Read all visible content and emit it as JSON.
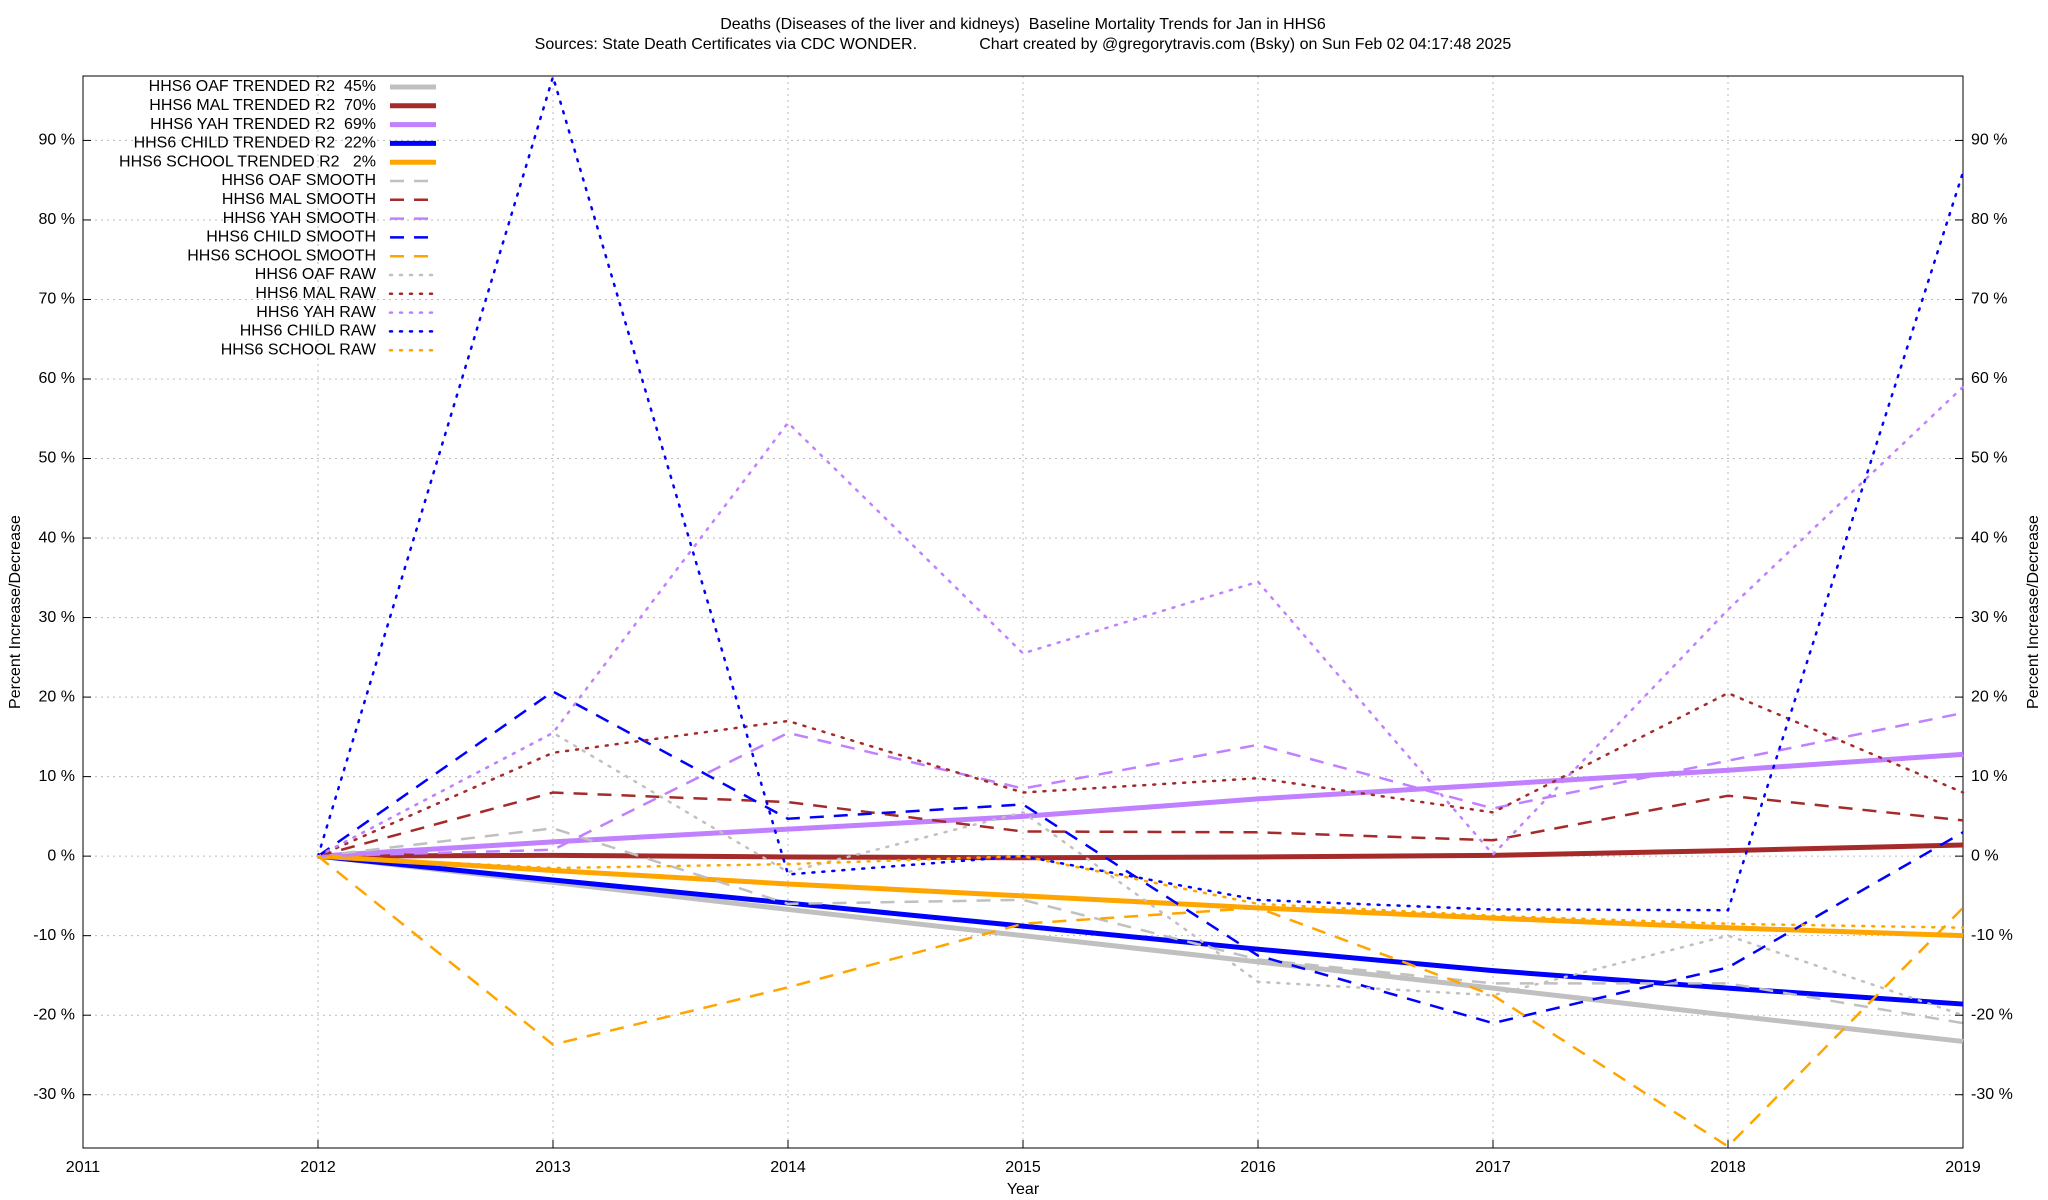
{
  "chart_data": {
    "type": "line",
    "title": "Deaths (Diseases of the liver and kidneys)  Baseline Mortality Trends for Jan in HHS6",
    "subtitle": "Sources: State Death Certificates via CDC WONDER.              Chart created by @gregorytravis.com (Bsky) on Sun Feb 02 04:17:48 2025",
    "x_label": "Year",
    "y_label": "Percent Increase/Decrease",
    "y2_label": "Percent Increase/Decrease",
    "x": [
      2012,
      2013,
      2014,
      2015,
      2016,
      2017,
      2018,
      2019
    ],
    "xlim": [
      2011,
      2019
    ],
    "xticks": [
      2011,
      2012,
      2013,
      2014,
      2015,
      2016,
      2017,
      2018,
      2019
    ],
    "ylim": [
      -36.7,
      98.1
    ],
    "yticks": [
      {
        "value": -30,
        "label": "-30 %"
      },
      {
        "value": -20,
        "label": "-20 %"
      },
      {
        "value": -10,
        "label": "-10 %"
      },
      {
        "value": 0,
        "label": "0 %"
      },
      {
        "value": 10,
        "label": "10 %"
      },
      {
        "value": 20,
        "label": "20 %"
      },
      {
        "value": 30,
        "label": "30 %"
      },
      {
        "value": 40,
        "label": "40 %"
      },
      {
        "value": 50,
        "label": "50 %"
      },
      {
        "value": 60,
        "label": "60 %"
      },
      {
        "value": 70,
        "label": "70 %"
      },
      {
        "value": 80,
        "label": "80 %"
      },
      {
        "value": 90,
        "label": "90 %"
      }
    ],
    "grid": true,
    "legend": "top-left",
    "series": [
      {
        "name": "HHS6 OAF TRENDED R2  45%",
        "color": "#c0c0c0",
        "style": "solid",
        "values": [
          0,
          -3.3,
          -6.7,
          -10,
          -13.3,
          -16.6,
          -20,
          -23.3
        ]
      },
      {
        "name": "HHS6 MAL TRENDED R2  70%",
        "color": "#a52a2a",
        "style": "solid",
        "values": [
          0,
          0.1,
          -0.1,
          -0.2,
          -0.1,
          0.1,
          0.7,
          1.4
        ]
      },
      {
        "name": "HHS6 YAH TRENDED R2  69%",
        "color": "#c080ff",
        "style": "solid",
        "values": [
          0,
          1.8,
          3.4,
          5.0,
          7.2,
          9.0,
          10.8,
          12.8
        ]
      },
      {
        "name": "HHS6 CHILD TRENDED R2  22%",
        "color": "#0000ff",
        "style": "solid",
        "values": [
          0,
          -3,
          -5.9,
          -8.8,
          -11.7,
          -14.4,
          -16.6,
          -18.6
        ]
      },
      {
        "name": "HHS6 SCHOOL TRENDED R2   2%",
        "color": "#ffa500",
        "style": "solid",
        "values": [
          0,
          -1.8,
          -3.5,
          -5,
          -6.5,
          -7.8,
          -9,
          -10
        ]
      },
      {
        "name": "HHS6 OAF SMOOTH",
        "color": "#c0c0c0",
        "style": "dashed",
        "values": [
          0,
          3.5,
          -6,
          -5.5,
          -13,
          -16,
          -16,
          -21
        ]
      },
      {
        "name": "HHS6 MAL SMOOTH",
        "color": "#a52a2a",
        "style": "dashed",
        "values": [
          0,
          8,
          6.8,
          3.1,
          3,
          2,
          7.6,
          4.5
        ]
      },
      {
        "name": "HHS6 YAH SMOOTH",
        "color": "#c080ff",
        "style": "dashed",
        "values": [
          0,
          0.8,
          15.5,
          8.5,
          14,
          6,
          12,
          18
        ]
      },
      {
        "name": "HHS6 CHILD SMOOTH",
        "color": "#0000ff",
        "style": "dashed",
        "values": [
          0,
          20.7,
          4.7,
          6.5,
          -12.5,
          -21,
          -14,
          3
        ]
      },
      {
        "name": "HHS6 SCHOOL SMOOTH",
        "color": "#ffa500",
        "style": "dashed",
        "values": [
          0,
          -23.7,
          -16.5,
          -8.5,
          -6.5,
          -17.5,
          -36.5,
          -6.5
        ]
      },
      {
        "name": "HHS6 OAF RAW",
        "color": "#c0c0c0",
        "style": "dotted",
        "values": [
          0,
          15.5,
          -2,
          5.5,
          -15.8,
          -17.5,
          -10,
          -20
        ]
      },
      {
        "name": "HHS6 MAL RAW",
        "color": "#a52a2a",
        "style": "dotted",
        "values": [
          0,
          13,
          17,
          8,
          9.8,
          5.5,
          20.5,
          8
        ]
      },
      {
        "name": "HHS6 YAH RAW",
        "color": "#c080ff",
        "style": "dotted",
        "values": [
          0,
          15.5,
          54.5,
          25.5,
          34.5,
          0.2,
          31,
          59
        ]
      },
      {
        "name": "HHS6 CHILD RAW",
        "color": "#0000ff",
        "style": "dotted",
        "values": [
          0,
          98,
          -2.3,
          0,
          -5.5,
          -6.7,
          -6.8,
          86
        ]
      },
      {
        "name": "HHS6 SCHOOL RAW",
        "color": "#ffa500",
        "style": "dotted",
        "values": [
          0,
          -1.5,
          -1,
          0,
          -6,
          -7.5,
          -8.5,
          -9
        ]
      }
    ]
  }
}
